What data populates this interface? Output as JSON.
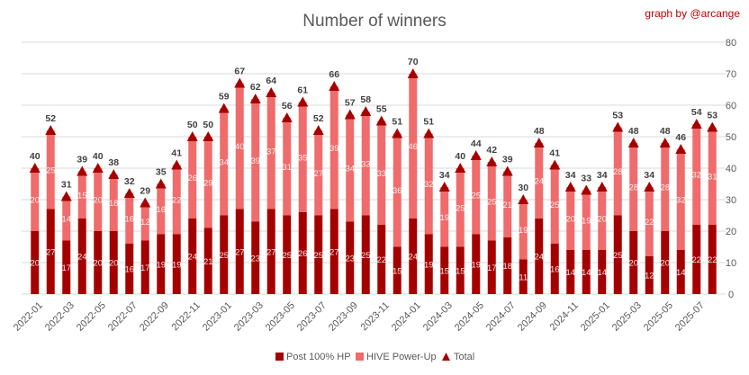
{
  "chart_data": {
    "type": "bar",
    "stacked": true,
    "title": "Number of winners",
    "credit": "graph by @arcange",
    "categories": [
      "2022-01",
      "2022-02",
      "2022-03",
      "2022-04",
      "2022-05",
      "2022-06",
      "2022-07",
      "2022-08",
      "2022-09",
      "2022-10",
      "2022-11",
      "2022-12",
      "2023-01",
      "2023-02",
      "2023-03",
      "2023-04",
      "2023-05",
      "2023-06",
      "2023-07",
      "2023-08",
      "2023-09",
      "2023-10",
      "2023-11",
      "2023-12",
      "2024-01",
      "2024-02",
      "2024-03",
      "2024-04",
      "2024-05",
      "2024-06",
      "2024-07",
      "2024-08",
      "2024-09",
      "2024-10",
      "2024-11",
      "2024-12",
      "2025-01",
      "2025-02",
      "2025-03",
      "2025-04",
      "2025-05",
      "2025-06",
      "2025-07",
      "2025-08"
    ],
    "x_tick_labels": [
      "2022-01",
      "2022-03",
      "2022-05",
      "2022-07",
      "2022-09",
      "2022-11",
      "2023-01",
      "2023-03",
      "2023-05",
      "2023-07",
      "2023-09",
      "2023-11",
      "2024-01",
      "2024-03",
      "2024-05",
      "2024-07",
      "2024-09",
      "2024-11",
      "2025-01",
      "2025-03",
      "2025-05",
      "2025-07"
    ],
    "series": [
      {
        "name": "Post 100% HP",
        "color": "#a50000",
        "values": [
          20,
          27,
          17,
          24,
          20,
          20,
          16,
          17,
          19,
          19,
          24,
          21,
          25,
          27,
          23,
          27,
          25,
          26,
          25,
          27,
          23,
          25,
          22,
          15,
          24,
          19,
          15,
          15,
          19,
          17,
          18,
          11,
          24,
          16,
          14,
          14,
          14,
          25,
          20,
          12,
          20,
          14,
          22,
          22
        ]
      },
      {
        "name": "HIVE Power-Up",
        "color": "#f06b6b",
        "values": [
          20,
          25,
          14,
          15,
          20,
          18,
          16,
          12,
          16,
          22,
          26,
          29,
          34,
          40,
          39,
          37,
          31,
          35,
          27,
          39,
          34,
          33,
          33,
          36,
          46,
          32,
          19,
          25,
          25,
          25,
          21,
          19,
          24,
          25,
          20,
          19,
          20,
          28,
          28,
          22,
          28,
          32,
          32,
          31
        ]
      }
    ],
    "totals": {
      "name": "Total",
      "color": "#a50000",
      "values": [
        40,
        52,
        31,
        39,
        40,
        38,
        32,
        29,
        35,
        41,
        50,
        50,
        59,
        67,
        62,
        64,
        56,
        61,
        52,
        66,
        57,
        58,
        55,
        51,
        70,
        51,
        34,
        40,
        44,
        42,
        39,
        30,
        48,
        41,
        34,
        33,
        34,
        53,
        48,
        34,
        48,
        46,
        54,
        53
      ]
    },
    "y_axis": {
      "min": 0,
      "max": 80,
      "ticks": [
        0,
        10,
        20,
        30,
        40,
        50,
        60,
        70,
        80
      ],
      "position": "right"
    },
    "grid": true,
    "legend_position": "bottom"
  }
}
